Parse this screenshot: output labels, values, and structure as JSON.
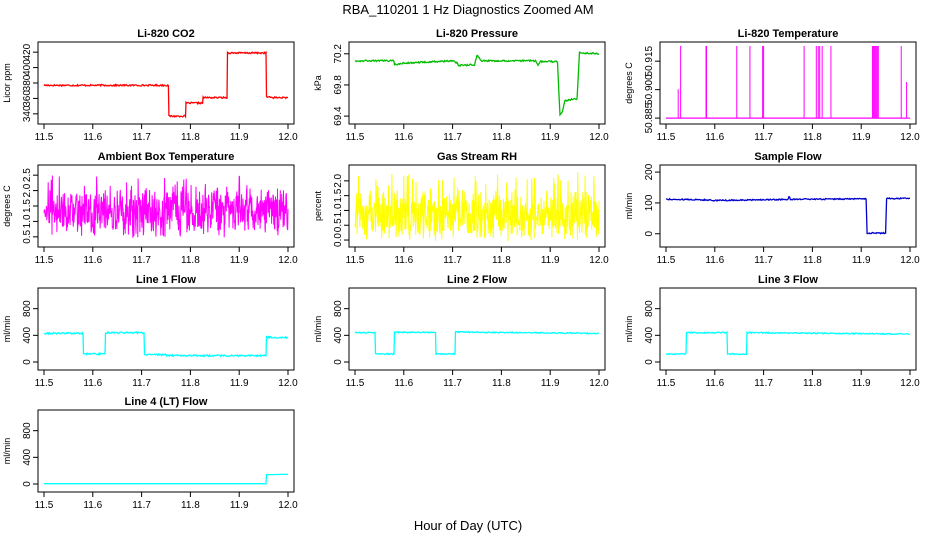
{
  "figure": {
    "title": "RBA_110201  1 Hz Diagnostics Zoomed AM",
    "xlabel": "Hour of Day (UTC)"
  },
  "chart_data": [
    {
      "type": "line",
      "title": "Li-820 CO2",
      "ylabel": "Licor ppm",
      "color": "#ff0000",
      "xlim": [
        11.5,
        12.0
      ],
      "ylim": [
        332,
        428
      ],
      "xticks": [
        11.5,
        11.6,
        11.7,
        11.8,
        11.9,
        12.0
      ],
      "yticks": [
        340,
        360,
        380,
        400,
        420
      ],
      "noise": 1.0,
      "x": [
        11.5,
        11.6,
        11.7,
        11.755,
        11.756,
        11.79,
        11.791,
        11.825,
        11.826,
        11.875,
        11.876,
        11.955,
        11.956,
        11.97,
        12.0
      ],
      "y": [
        377,
        377,
        377,
        377,
        337,
        337,
        354,
        354,
        361,
        361,
        419,
        419,
        362,
        361,
        361
      ]
    },
    {
      "type": "line",
      "title": "Li-820 Pressure",
      "ylabel": "kPa",
      "color": "#00bb00",
      "xlim": [
        11.5,
        12.0
      ],
      "ylim": [
        69.35,
        70.3
      ],
      "xticks": [
        11.5,
        11.6,
        11.7,
        11.8,
        11.9,
        12.0
      ],
      "yticks": [
        69.4,
        69.8,
        70.2
      ],
      "yticklabels": [
        "69.4",
        "69.8",
        "70.2"
      ],
      "noise": 0.01,
      "x": [
        11.5,
        11.58,
        11.581,
        11.6,
        11.7,
        11.71,
        11.711,
        11.745,
        11.75,
        11.76,
        11.8,
        11.87,
        11.875,
        11.88,
        11.915,
        11.92,
        11.925,
        11.93,
        11.95,
        11.955,
        11.96,
        11.97,
        12.0
      ],
      "y": [
        70.11,
        70.11,
        70.06,
        70.08,
        70.11,
        70.08,
        70.05,
        70.06,
        70.18,
        70.11,
        70.11,
        70.11,
        70.05,
        70.1,
        70.1,
        69.42,
        69.45,
        69.6,
        69.62,
        69.62,
        70.22,
        70.21,
        70.2
      ]
    },
    {
      "type": "line",
      "title": "Li-820 Temperature",
      "ylabel": "degrees C",
      "color": "#ff00ff",
      "xlim": [
        11.5,
        12.0
      ],
      "ylim": [
        50.884,
        50.923
      ],
      "xticks": [
        11.5,
        11.6,
        11.7,
        11.8,
        11.9,
        12.0
      ],
      "yticks": [
        50.885,
        50.9,
        50.915
      ],
      "yticklabels": [
        "50.885",
        "50.900",
        "50.915"
      ],
      "baseline": 50.885,
      "spike": 50.923,
      "spike_x": [
        11.525,
        11.53,
        11.582,
        11.583,
        11.645,
        11.672,
        11.698,
        11.7,
        11.783,
        11.808,
        11.812,
        11.815,
        11.82,
        11.838,
        11.923,
        11.925,
        11.927,
        11.929,
        11.931,
        11.933,
        11.935,
        11.982,
        11.993
      ],
      "spike_h": [
        0.4,
        1,
        1,
        1,
        1,
        1,
        1,
        1,
        1,
        1,
        1,
        1,
        1,
        1,
        1,
        1,
        1,
        1,
        1,
        1,
        1,
        1,
        0.5
      ]
    },
    {
      "type": "line",
      "title": "Ambient Box Temperature",
      "ylabel": "degrees C",
      "color": "#ff00ff",
      "xlim": [
        11.5,
        12.0
      ],
      "ylim": [
        0.3,
        2.7
      ],
      "xticks": [
        11.5,
        11.6,
        11.7,
        11.8,
        11.9,
        12.0
      ],
      "yticks": [
        0.5,
        1.0,
        1.5,
        2.0,
        2.5
      ],
      "yticklabels": [
        "0.5",
        "1.0",
        "1.5",
        "2.0",
        "2.5"
      ],
      "band": [
        0.5,
        2.5
      ],
      "center": 1.3,
      "density": 700
    },
    {
      "type": "line",
      "title": "Gas Stream RH",
      "ylabel": "percent",
      "color": "#ffff00",
      "xlim": [
        11.5,
        12.0
      ],
      "ylim": [
        -0.1,
        2.4
      ],
      "xticks": [
        11.5,
        11.6,
        11.7,
        11.8,
        11.9,
        12.0
      ],
      "yticks": [
        0.0,
        0.5,
        1.0,
        1.5,
        2.0
      ],
      "yticklabels": [
        "0.0",
        "0.5",
        "1.0",
        "1.5",
        "2.0"
      ],
      "band": [
        0.0,
        2.3
      ],
      "center": 0.8,
      "density": 700
    },
    {
      "type": "line",
      "title": "Sample Flow",
      "ylabel": "ml/min",
      "color": "#0000cc",
      "xlim": [
        11.5,
        12.0
      ],
      "ylim": [
        -30,
        210
      ],
      "xticks": [
        11.5,
        11.6,
        11.7,
        11.8,
        11.9,
        12.0
      ],
      "yticks": [
        0,
        100,
        200
      ],
      "noise": 2,
      "x": [
        11.5,
        11.58,
        11.6,
        11.7,
        11.75,
        11.752,
        11.755,
        11.8,
        11.9,
        11.91,
        11.912,
        11.95,
        11.952,
        11.97,
        12.0
      ],
      "y": [
        112,
        110,
        108,
        110,
        112,
        122,
        112,
        112,
        113,
        113,
        2,
        2,
        115,
        114,
        115
      ]
    },
    {
      "type": "line",
      "title": "Line 1 Flow",
      "ylabel": "ml/min",
      "color": "#00ffff",
      "xlim": [
        11.5,
        12.0
      ],
      "ylim": [
        -60,
        1050
      ],
      "xticks": [
        11.5,
        11.6,
        11.7,
        11.8,
        11.9,
        12.0
      ],
      "yticks": [
        0,
        400,
        800
      ],
      "noise": 12,
      "x": [
        11.5,
        11.58,
        11.581,
        11.625,
        11.626,
        11.705,
        11.706,
        11.75,
        11.751,
        11.955,
        11.956,
        12.0
      ],
      "y": [
        430,
        430,
        120,
        120,
        440,
        440,
        110,
        110,
        95,
        95,
        370,
        370
      ]
    },
    {
      "type": "line",
      "title": "Line 2 Flow",
      "ylabel": "ml/min",
      "color": "#00ffff",
      "xlim": [
        11.5,
        12.0
      ],
      "ylim": [
        -60,
        1050
      ],
      "xticks": [
        11.5,
        11.6,
        11.7,
        11.8,
        11.9,
        12.0
      ],
      "yticks": [
        0,
        400,
        800
      ],
      "noise": 8,
      "x": [
        11.5,
        11.541,
        11.542,
        11.58,
        11.581,
        11.665,
        11.666,
        11.705,
        11.706,
        12.0
      ],
      "y": [
        440,
        440,
        120,
        120,
        445,
        445,
        120,
        120,
        450,
        430
      ]
    },
    {
      "type": "line",
      "title": "Line 3 Flow",
      "ylabel": "ml/min",
      "color": "#00ffff",
      "xlim": [
        11.5,
        12.0
      ],
      "ylim": [
        -60,
        1050
      ],
      "xticks": [
        11.5,
        11.6,
        11.7,
        11.8,
        11.9,
        12.0
      ],
      "yticks": [
        0,
        400,
        800
      ],
      "noise": 8,
      "x": [
        11.5,
        11.541,
        11.542,
        11.625,
        11.626,
        11.665,
        11.666,
        12.0
      ],
      "y": [
        120,
        120,
        440,
        440,
        120,
        120,
        440,
        420
      ]
    },
    {
      "type": "line",
      "title": "Line 4 (LT) Flow",
      "ylabel": "ml/min",
      "color": "#00ffff",
      "xlim": [
        11.5,
        12.0
      ],
      "ylim": [
        -60,
        1050
      ],
      "xticks": [
        11.5,
        11.6,
        11.7,
        11.8,
        11.9,
        12.0
      ],
      "yticks": [
        0,
        400,
        800
      ],
      "noise": 0,
      "x": [
        11.5,
        11.955,
        11.956,
        12.0
      ],
      "y": [
        5,
        5,
        140,
        145
      ]
    }
  ]
}
